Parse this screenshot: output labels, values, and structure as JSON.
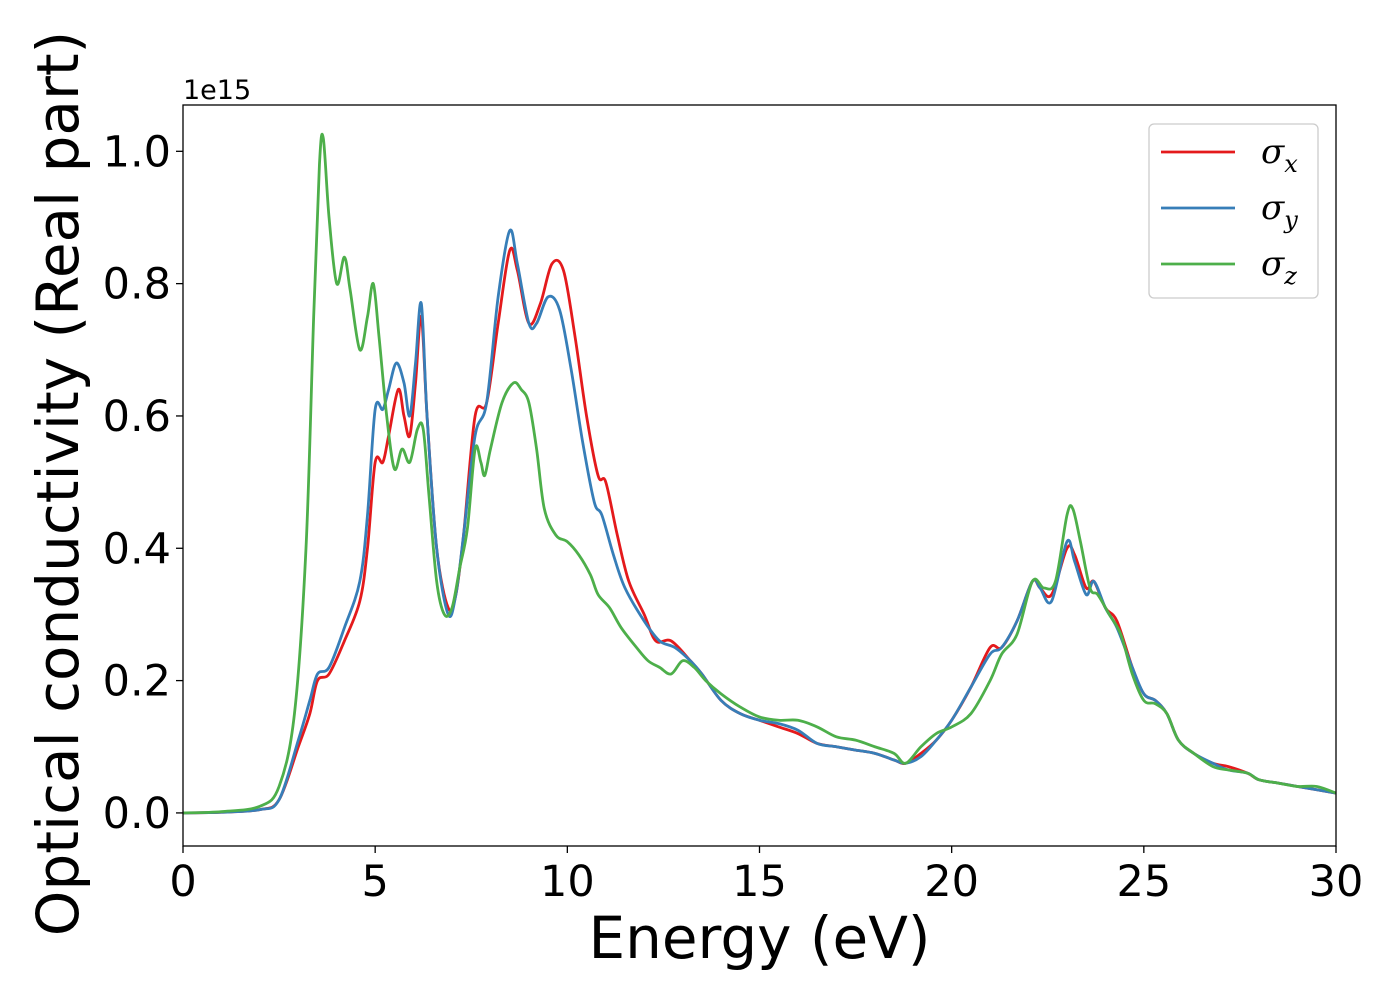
{
  "chart_data": {
    "type": "line",
    "xlabel": "Energy (eV)",
    "ylabel": "Optical conductivity (Real part)",
    "y_offset_label": "1e15",
    "xlim": [
      0,
      30
    ],
    "ylim": [
      -0.05,
      1.07
    ],
    "xticks": [
      0,
      5,
      10,
      15,
      20,
      25,
      30
    ],
    "xtick_labels": [
      "0",
      "5",
      "10",
      "15",
      "20",
      "25",
      "30"
    ],
    "yticks": [
      0.0,
      0.2,
      0.4,
      0.6,
      0.8,
      1.0
    ],
    "ytick_labels": [
      "0.0",
      "0.2",
      "0.4",
      "0.6",
      "0.8",
      "1.0"
    ],
    "grid": false,
    "legend_position": "top-right",
    "series": [
      {
        "name": "σx",
        "label_main": "σ",
        "label_sub": "x",
        "color": "#e41a1c",
        "points": [
          [
            0,
            0
          ],
          [
            1,
            0.001
          ],
          [
            2,
            0.005
          ],
          [
            2.5,
            0.02
          ],
          [
            3.0,
            0.1
          ],
          [
            3.3,
            0.15
          ],
          [
            3.5,
            0.2
          ],
          [
            3.8,
            0.21
          ],
          [
            4.2,
            0.26
          ],
          [
            4.6,
            0.32
          ],
          [
            4.8,
            0.4
          ],
          [
            5.0,
            0.53
          ],
          [
            5.2,
            0.53
          ],
          [
            5.35,
            0.57
          ],
          [
            5.6,
            0.64
          ],
          [
            5.75,
            0.6
          ],
          [
            5.9,
            0.57
          ],
          [
            6.05,
            0.65
          ],
          [
            6.2,
            0.75
          ],
          [
            6.35,
            0.6
          ],
          [
            6.6,
            0.4
          ],
          [
            6.9,
            0.31
          ],
          [
            7.1,
            0.33
          ],
          [
            7.3,
            0.42
          ],
          [
            7.6,
            0.6
          ],
          [
            7.9,
            0.62
          ],
          [
            8.2,
            0.74
          ],
          [
            8.5,
            0.85
          ],
          [
            8.7,
            0.82
          ],
          [
            9.0,
            0.74
          ],
          [
            9.3,
            0.77
          ],
          [
            9.6,
            0.83
          ],
          [
            9.9,
            0.82
          ],
          [
            10.2,
            0.72
          ],
          [
            10.5,
            0.6
          ],
          [
            10.8,
            0.51
          ],
          [
            11.0,
            0.5
          ],
          [
            11.3,
            0.42
          ],
          [
            11.6,
            0.35
          ],
          [
            12.0,
            0.3
          ],
          [
            12.3,
            0.26
          ],
          [
            12.7,
            0.26
          ],
          [
            13.2,
            0.23
          ],
          [
            13.5,
            0.21
          ],
          [
            14.0,
            0.17
          ],
          [
            14.5,
            0.15
          ],
          [
            15.0,
            0.14
          ],
          [
            15.5,
            0.13
          ],
          [
            16.0,
            0.12
          ],
          [
            16.5,
            0.105
          ],
          [
            17.0,
            0.1
          ],
          [
            17.5,
            0.095
          ],
          [
            18.0,
            0.09
          ],
          [
            18.5,
            0.08
          ],
          [
            18.8,
            0.075
          ],
          [
            19.2,
            0.09
          ],
          [
            19.6,
            0.11
          ],
          [
            20.0,
            0.14
          ],
          [
            20.5,
            0.19
          ],
          [
            21.0,
            0.25
          ],
          [
            21.3,
            0.25
          ],
          [
            21.7,
            0.29
          ],
          [
            22.1,
            0.35
          ],
          [
            22.3,
            0.34
          ],
          [
            22.6,
            0.33
          ],
          [
            23.0,
            0.4
          ],
          [
            23.2,
            0.39
          ],
          [
            23.5,
            0.34
          ],
          [
            23.7,
            0.35
          ],
          [
            24.0,
            0.31
          ],
          [
            24.3,
            0.29
          ],
          [
            24.7,
            0.22
          ],
          [
            25.0,
            0.18
          ],
          [
            25.3,
            0.17
          ],
          [
            25.6,
            0.15
          ],
          [
            25.9,
            0.11
          ],
          [
            26.3,
            0.09
          ],
          [
            26.8,
            0.075
          ],
          [
            27.2,
            0.07
          ],
          [
            27.7,
            0.06
          ],
          [
            28.0,
            0.05
          ],
          [
            28.5,
            0.045
          ],
          [
            29.0,
            0.04
          ],
          [
            29.5,
            0.035
          ],
          [
            30.0,
            0.03
          ]
        ]
      },
      {
        "name": "σy",
        "label_main": "σ",
        "label_sub": "y",
        "color": "#377eb8",
        "points": [
          [
            0,
            0
          ],
          [
            1,
            0.001
          ],
          [
            2,
            0.005
          ],
          [
            2.5,
            0.02
          ],
          [
            3.0,
            0.11
          ],
          [
            3.3,
            0.17
          ],
          [
            3.5,
            0.21
          ],
          [
            3.8,
            0.22
          ],
          [
            4.2,
            0.28
          ],
          [
            4.6,
            0.35
          ],
          [
            4.8,
            0.45
          ],
          [
            5.0,
            0.61
          ],
          [
            5.2,
            0.61
          ],
          [
            5.35,
            0.64
          ],
          [
            5.55,
            0.68
          ],
          [
            5.75,
            0.65
          ],
          [
            5.9,
            0.6
          ],
          [
            6.05,
            0.68
          ],
          [
            6.2,
            0.77
          ],
          [
            6.35,
            0.6
          ],
          [
            6.6,
            0.4
          ],
          [
            6.9,
            0.3
          ],
          [
            7.1,
            0.33
          ],
          [
            7.3,
            0.42
          ],
          [
            7.6,
            0.57
          ],
          [
            7.9,
            0.62
          ],
          [
            8.2,
            0.78
          ],
          [
            8.5,
            0.88
          ],
          [
            8.7,
            0.83
          ],
          [
            9.0,
            0.74
          ],
          [
            9.2,
            0.74
          ],
          [
            9.5,
            0.78
          ],
          [
            9.8,
            0.76
          ],
          [
            10.1,
            0.67
          ],
          [
            10.4,
            0.56
          ],
          [
            10.7,
            0.47
          ],
          [
            10.9,
            0.45
          ],
          [
            11.2,
            0.39
          ],
          [
            11.5,
            0.34
          ],
          [
            12.0,
            0.29
          ],
          [
            12.4,
            0.26
          ],
          [
            12.8,
            0.25
          ],
          [
            13.2,
            0.23
          ],
          [
            13.5,
            0.21
          ],
          [
            14.0,
            0.17
          ],
          [
            14.5,
            0.15
          ],
          [
            15.0,
            0.14
          ],
          [
            15.5,
            0.135
          ],
          [
            16.0,
            0.125
          ],
          [
            16.5,
            0.105
          ],
          [
            17.0,
            0.1
          ],
          [
            17.5,
            0.095
          ],
          [
            18.0,
            0.09
          ],
          [
            18.5,
            0.08
          ],
          [
            18.8,
            0.075
          ],
          [
            19.2,
            0.085
          ],
          [
            19.6,
            0.11
          ],
          [
            20.0,
            0.14
          ],
          [
            20.5,
            0.19
          ],
          [
            21.0,
            0.24
          ],
          [
            21.3,
            0.25
          ],
          [
            21.7,
            0.29
          ],
          [
            22.1,
            0.35
          ],
          [
            22.3,
            0.34
          ],
          [
            22.6,
            0.32
          ],
          [
            23.0,
            0.41
          ],
          [
            23.2,
            0.38
          ],
          [
            23.5,
            0.33
          ],
          [
            23.7,
            0.35
          ],
          [
            24.0,
            0.31
          ],
          [
            24.3,
            0.28
          ],
          [
            24.7,
            0.22
          ],
          [
            25.0,
            0.18
          ],
          [
            25.3,
            0.17
          ],
          [
            25.6,
            0.15
          ],
          [
            25.9,
            0.11
          ],
          [
            26.3,
            0.09
          ],
          [
            26.8,
            0.075
          ],
          [
            27.2,
            0.065
          ],
          [
            27.7,
            0.06
          ],
          [
            28.0,
            0.05
          ],
          [
            28.5,
            0.045
          ],
          [
            29.0,
            0.04
          ],
          [
            29.5,
            0.035
          ],
          [
            30.0,
            0.03
          ]
        ]
      },
      {
        "name": "σz",
        "label_main": "σ",
        "label_sub": "z",
        "color": "#4daf4a",
        "points": [
          [
            0,
            0
          ],
          [
            1,
            0.002
          ],
          [
            2,
            0.01
          ],
          [
            2.5,
            0.04
          ],
          [
            2.9,
            0.15
          ],
          [
            3.2,
            0.4
          ],
          [
            3.4,
            0.75
          ],
          [
            3.55,
            0.98
          ],
          [
            3.65,
            1.02
          ],
          [
            3.8,
            0.9
          ],
          [
            4.0,
            0.8
          ],
          [
            4.2,
            0.84
          ],
          [
            4.35,
            0.79
          ],
          [
            4.6,
            0.7
          ],
          [
            4.8,
            0.75
          ],
          [
            4.95,
            0.8
          ],
          [
            5.1,
            0.72
          ],
          [
            5.3,
            0.6
          ],
          [
            5.5,
            0.52
          ],
          [
            5.7,
            0.55
          ],
          [
            5.9,
            0.53
          ],
          [
            6.1,
            0.58
          ],
          [
            6.25,
            0.58
          ],
          [
            6.4,
            0.48
          ],
          [
            6.6,
            0.35
          ],
          [
            6.8,
            0.3
          ],
          [
            7.0,
            0.31
          ],
          [
            7.2,
            0.37
          ],
          [
            7.4,
            0.43
          ],
          [
            7.6,
            0.55
          ],
          [
            7.75,
            0.53
          ],
          [
            7.85,
            0.51
          ],
          [
            8.0,
            0.55
          ],
          [
            8.3,
            0.62
          ],
          [
            8.6,
            0.65
          ],
          [
            8.8,
            0.64
          ],
          [
            9.0,
            0.62
          ],
          [
            9.2,
            0.55
          ],
          [
            9.4,
            0.46
          ],
          [
            9.7,
            0.42
          ],
          [
            10.0,
            0.41
          ],
          [
            10.3,
            0.39
          ],
          [
            10.6,
            0.36
          ],
          [
            10.8,
            0.33
          ],
          [
            11.1,
            0.31
          ],
          [
            11.4,
            0.28
          ],
          [
            11.8,
            0.25
          ],
          [
            12.1,
            0.23
          ],
          [
            12.4,
            0.22
          ],
          [
            12.7,
            0.21
          ],
          [
            13.0,
            0.23
          ],
          [
            13.3,
            0.22
          ],
          [
            13.6,
            0.2
          ],
          [
            14.0,
            0.18
          ],
          [
            14.5,
            0.16
          ],
          [
            15.0,
            0.145
          ],
          [
            15.5,
            0.14
          ],
          [
            16.0,
            0.14
          ],
          [
            16.5,
            0.13
          ],
          [
            17.0,
            0.115
          ],
          [
            17.5,
            0.11
          ],
          [
            18.0,
            0.1
          ],
          [
            18.5,
            0.09
          ],
          [
            18.8,
            0.075
          ],
          [
            19.2,
            0.1
          ],
          [
            19.6,
            0.12
          ],
          [
            20.0,
            0.13
          ],
          [
            20.5,
            0.15
          ],
          [
            21.0,
            0.2
          ],
          [
            21.3,
            0.24
          ],
          [
            21.7,
            0.27
          ],
          [
            22.1,
            0.35
          ],
          [
            22.4,
            0.34
          ],
          [
            22.7,
            0.35
          ],
          [
            23.0,
            0.45
          ],
          [
            23.15,
            0.46
          ],
          [
            23.35,
            0.41
          ],
          [
            23.6,
            0.34
          ],
          [
            23.8,
            0.33
          ],
          [
            24.1,
            0.3
          ],
          [
            24.4,
            0.27
          ],
          [
            24.7,
            0.21
          ],
          [
            25.0,
            0.17
          ],
          [
            25.3,
            0.165
          ],
          [
            25.6,
            0.15
          ],
          [
            25.9,
            0.11
          ],
          [
            26.3,
            0.09
          ],
          [
            26.8,
            0.07
          ],
          [
            27.2,
            0.065
          ],
          [
            27.7,
            0.06
          ],
          [
            28.0,
            0.05
          ],
          [
            28.5,
            0.045
          ],
          [
            29.0,
            0.04
          ],
          [
            29.5,
            0.04
          ],
          [
            30.0,
            0.03
          ]
        ]
      }
    ]
  }
}
